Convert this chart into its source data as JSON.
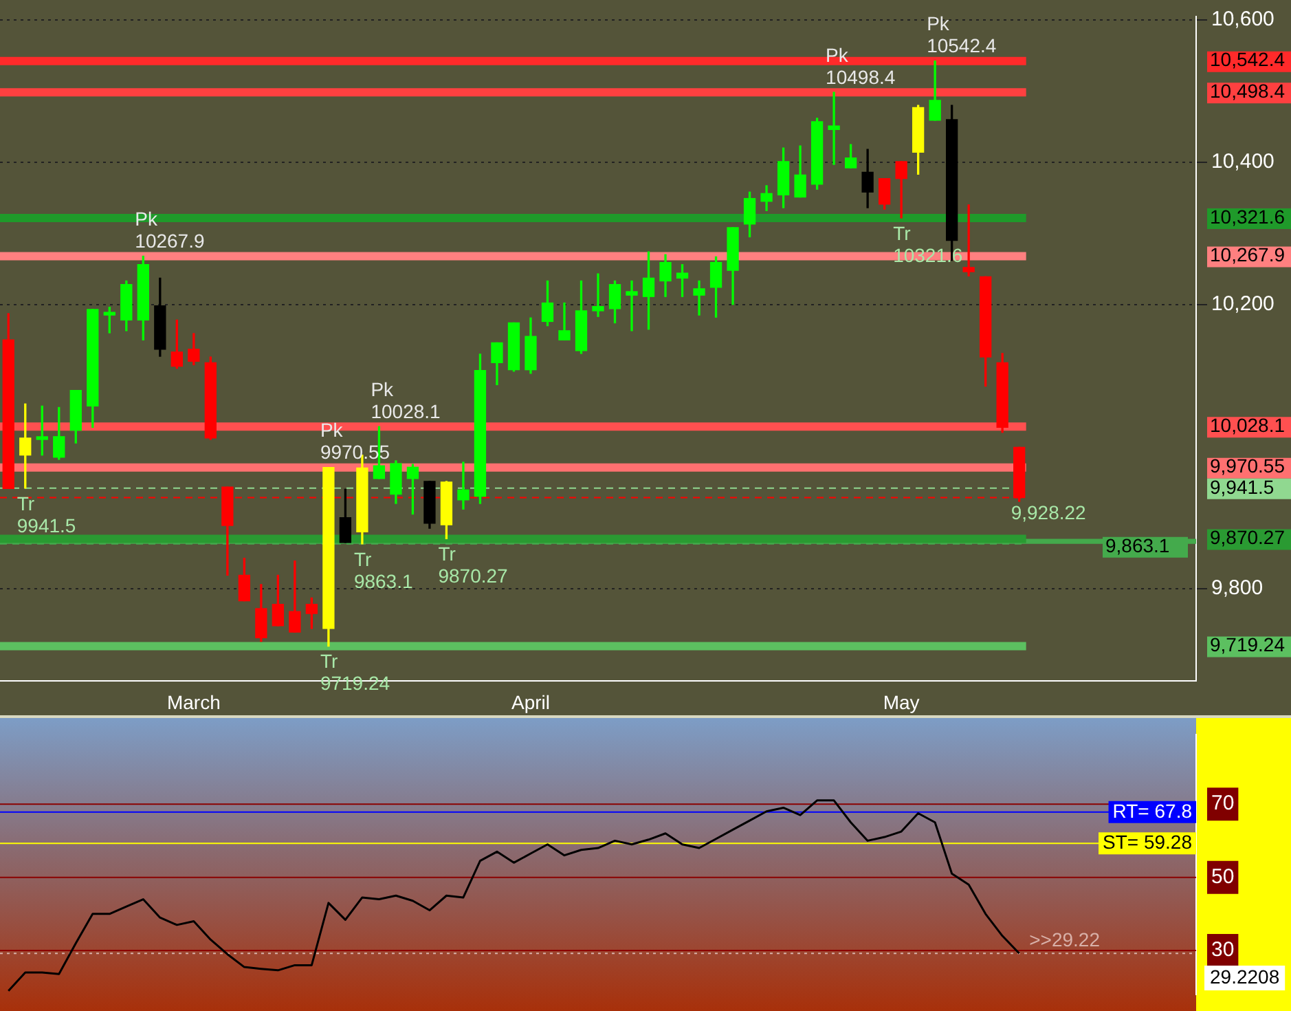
{
  "chart_data": [
    {
      "type": "candlestick",
      "categories": [
        null,
        null,
        null,
        null,
        null,
        null,
        null,
        null,
        null,
        null,
        null,
        "March",
        null,
        null,
        null,
        null,
        null,
        null,
        null,
        null,
        null,
        null,
        null,
        null,
        null,
        null,
        null,
        null,
        null,
        null,
        null,
        "April",
        null,
        null,
        null,
        null,
        null,
        null,
        null,
        null,
        null,
        null,
        null,
        null,
        null,
        null,
        null,
        null,
        null,
        null,
        null,
        null,
        null,
        "May",
        null,
        null,
        null,
        null,
        null,
        null,
        null,
        null,
        null,
        null,
        null,
        null,
        null,
        null,
        null,
        null,
        null
      ],
      "ohlc": [
        [
          10150,
          10187,
          9941,
          9941
        ],
        [
          9988,
          10060,
          9941.5,
          10012
        ],
        [
          10010,
          10057,
          9988,
          10012
        ],
        [
          9985,
          10055,
          9982,
          10014
        ],
        [
          10023,
          10079,
          10005,
          10079
        ],
        [
          10057,
          10193,
          10027,
          10193
        ],
        [
          10185,
          10196,
          10160,
          10188
        ],
        [
          10178,
          10233,
          10163,
          10228
        ],
        [
          10178,
          10267.9,
          10150,
          10256
        ],
        [
          10198,
          10237,
          10127,
          10137
        ],
        [
          10133,
          10178,
          10110,
          10113
        ],
        [
          10137,
          10159,
          10115,
          10120
        ],
        [
          10118,
          10126,
          10010,
          10012
        ],
        [
          9943,
          9943,
          9819,
          9889
        ],
        [
          9819,
          9843,
          9783,
          9783
        ],
        [
          9772,
          9806,
          9726,
          9731
        ],
        [
          9778,
          9819,
          9748,
          9748
        ],
        [
          9768,
          9839,
          9739,
          9739
        ],
        [
          9778,
          9787,
          9744,
          9765
        ],
        [
          9744,
          9970.55,
          9719.24,
          9970.55
        ],
        [
          9900,
          9940,
          9865,
          9865
        ],
        [
          9880,
          9988,
          9863.1,
          9970
        ],
        [
          9955,
          10028.1,
          9955,
          9973
        ],
        [
          9933,
          9980,
          9920,
          9976
        ],
        [
          9955,
          9975,
          9905,
          9971
        ],
        [
          9951,
          9951,
          9885,
          9892
        ],
        [
          9890,
          9951,
          9870.27,
          9950
        ],
        [
          9925,
          9978,
          9912,
          9939
        ],
        [
          9930,
          10130,
          9920,
          10107
        ],
        [
          10118,
          10146,
          10087,
          10146
        ],
        [
          10108,
          10174,
          10106,
          10174
        ],
        [
          10108,
          10181,
          10103,
          10155
        ],
        [
          10176,
          10233,
          10170,
          10202
        ],
        [
          10150,
          10202,
          10150,
          10163
        ],
        [
          10135,
          10233,
          10131,
          10191
        ],
        [
          10191,
          10243,
          10183,
          10197
        ],
        [
          10194,
          10233,
          10174,
          10228
        ],
        [
          10213,
          10233,
          10163,
          10218
        ],
        [
          10211,
          10274,
          10165,
          10237
        ],
        [
          10233,
          10270,
          10211,
          10259
        ],
        [
          10237,
          10256,
          10211,
          10244
        ],
        [
          10213,
          10233,
          10185,
          10222
        ],
        [
          10224,
          10267,
          10182,
          10259
        ],
        [
          10248,
          10308,
          10200,
          10308
        ],
        [
          10313,
          10358,
          10295,
          10349
        ],
        [
          10345,
          10367,
          10332,
          10356
        ],
        [
          10354,
          10420,
          10336,
          10401
        ],
        [
          10351,
          10423,
          10351,
          10382
        ],
        [
          10369,
          10462,
          10362,
          10457
        ],
        [
          10446,
          10498.4,
          10397,
          10451
        ],
        [
          10392,
          10425,
          10392,
          10406
        ],
        [
          10386,
          10418,
          10336,
          10358
        ],
        [
          10377,
          10377,
          10334,
          10341
        ],
        [
          10401,
          10401,
          10321.6,
          10377
        ],
        [
          10414,
          10480,
          10383,
          10477
        ],
        [
          10459,
          10542.4,
          10459,
          10487
        ],
        [
          10460,
          10480,
          10262,
          10290
        ],
        [
          10252,
          10340,
          10240,
          10246
        ],
        [
          10239,
          10239,
          10085,
          10126
        ],
        [
          10118,
          10131,
          10020,
          10027
        ],
        [
          9999,
          9999,
          9923,
          9928.22
        ],
        null,
        null,
        null,
        null,
        null,
        null,
        null,
        null,
        null,
        null
      ],
      "colors": [
        "#ff0000",
        "#ffff00",
        "#00ff00",
        "#00ff00",
        "#00ff00",
        "#00ff00",
        "#00ff00",
        "#00ff00",
        "#00ff00",
        "#000000",
        "#ff0000",
        "#ff0000",
        "#ff0000",
        "#ff0000",
        "#ff0000",
        "#ff0000",
        "#ff0000",
        "#ff0000",
        "#ff0000",
        "#ffff00",
        "#000000",
        "#ffff00",
        "#00ff00",
        "#00ff00",
        "#00ff00",
        "#000000",
        "#ffff00",
        "#00ff00",
        "#00ff00",
        "#00ff00",
        "#00ff00",
        "#00ff00",
        "#00ff00",
        "#00ff00",
        "#00ff00",
        "#00ff00",
        "#00ff00",
        "#00ff00",
        "#00ff00",
        "#00ff00",
        "#00ff00",
        "#00ff00",
        "#00ff00",
        "#00ff00",
        "#00ff00",
        "#00ff00",
        "#00ff00",
        "#00ff00",
        "#00ff00",
        "#00ff00",
        "#00ff00",
        "#000000",
        "#ff0000",
        "#ff0000",
        "#ffff00",
        "#00ff00",
        "#000000",
        "#ff0000",
        "#ff0000",
        "#ff0000",
        "#ff0000",
        null,
        null,
        null,
        null,
        null,
        null,
        null,
        null,
        null,
        null
      ],
      "ylim": [
        9670,
        10605
      ],
      "yticks": [
        {
          "value": 9800,
          "label": "9,800"
        },
        {
          "value": 10200,
          "label": "10,200"
        },
        {
          "value": 10400,
          "label": "10,400"
        },
        {
          "value": 10600,
          "label": "10,600"
        }
      ],
      "grid": "y",
      "legend": false,
      "y2lim": [
        9670,
        10605
      ],
      "y2ticks": [
        {
          "value": 10542.4,
          "label": "10,542.4"
        },
        {
          "value": 10498.4,
          "label": "10,498.4"
        },
        {
          "value": 10321.6,
          "label": "10,321.6"
        },
        {
          "value": 10267.9,
          "label": "10,267.9"
        },
        {
          "value": 10028.1,
          "label": "10,028.1"
        },
        {
          "value": 9970.55,
          "label": "9,970.55"
        },
        {
          "value": 9941.5,
          "label": "9,941.5"
        },
        {
          "value": 9870.27,
          "label": "9,870.27"
        },
        {
          "value": 9719.24,
          "label": "9,719.24"
        }
      ],
      "bands": [
        {
          "axis": "y",
          "from": 9863.1,
          "to": 9870.27,
          "label": "9,863.1",
          "color": "#44aa4c"
        }
      ],
      "ref_lines": [
        {
          "axis": "y",
          "value": 10542.4,
          "label": "Pk\n10542.4",
          "color": "#ff2a2a"
        },
        {
          "axis": "y",
          "value": 10498.4,
          "label": "Pk\n10498.4",
          "color": "#ff4040"
        },
        {
          "axis": "y",
          "value": 10321.6,
          "label": "Tr\n10321.6",
          "color": "#1f9a2a"
        },
        {
          "axis": "y",
          "value": 10267.9,
          "label": "Pk\n10267.9",
          "color": "#ff8080"
        },
        {
          "axis": "y",
          "value": 10028.1,
          "label": "Pk\n10028.1",
          "color": "#ff5050"
        },
        {
          "axis": "y",
          "value": 9970.55,
          "label": "Pk\n9970.55",
          "color": "#ff7070"
        },
        {
          "axis": "y",
          "value": 9941.5,
          "label": "Tr\n9941.5",
          "color": "#90d890",
          "line_style": "dashed"
        },
        {
          "axis": "y",
          "value": 9928.22,
          "label": "9,928.22",
          "color": "#ff0000",
          "line_style": "dashed"
        },
        {
          "axis": "y",
          "value": 9870.27,
          "label": "Tr\n9870.27",
          "color": "#2a9a32"
        },
        {
          "axis": "y",
          "value": 9863.1,
          "label": "Tr\n9863.1",
          "color": "#44aa4c",
          "line_style": "dashed"
        },
        {
          "axis": "y",
          "value": 9719.24,
          "label": "Tr\n9719.24",
          "color": "#5cc060"
        }
      ]
    },
    {
      "type": "line",
      "categories": [
        null,
        null,
        null,
        null,
        null,
        null,
        null,
        null,
        null,
        null,
        null,
        null,
        null,
        null,
        null,
        null,
        null,
        null,
        null,
        null,
        null,
        null,
        null,
        null,
        null,
        null,
        null,
        null,
        null,
        null,
        null,
        null,
        null,
        null,
        null,
        null,
        null,
        null,
        null,
        null,
        null,
        null,
        null,
        null,
        null,
        null,
        null,
        null,
        null,
        null,
        null,
        null,
        null,
        null,
        null,
        null,
        null,
        null,
        null,
        null,
        null,
        null,
        null,
        null,
        null,
        null,
        null,
        null,
        null,
        null,
        null
      ],
      "values": [
        19,
        24,
        24,
        23.6,
        32,
        40,
        40,
        42,
        44,
        39,
        37,
        38,
        33,
        29,
        25.5,
        25,
        24.6,
        26,
        26,
        43,
        38.4,
        44.5,
        44,
        45,
        43.6,
        41,
        45,
        44.5,
        54.5,
        57,
        54,
        56.5,
        59,
        56,
        57.5,
        58,
        60,
        59,
        60.3,
        62,
        59,
        58,
        60.5,
        63,
        65.5,
        68,
        69,
        67,
        71,
        71,
        65,
        60,
        61,
        62.5,
        67.5,
        65,
        51,
        48,
        40,
        34,
        29.22,
        null,
        null,
        null,
        null,
        null,
        null,
        null,
        null,
        null,
        null
      ],
      "color": "#000000",
      "ylim": [
        18,
        89
      ],
      "yticks": [
        30,
        50,
        70
      ],
      "tick_labels": "y",
      "legend": false,
      "ref_lines": [
        {
          "axis": "y",
          "value": 70,
          "color": "#8b0000"
        },
        {
          "axis": "y",
          "value": 50,
          "color": "#8b0000"
        },
        {
          "axis": "y",
          "value": 30,
          "color": "#8b0000"
        },
        {
          "axis": "y",
          "value": 67.8,
          "label": "RT= 67.8",
          "color": "#0000ff"
        },
        {
          "axis": "y",
          "value": 59.28,
          "label": "ST= 59.28",
          "color": "#ffff00"
        },
        {
          "axis": "y",
          "value": 29.22,
          "label": ">>29.22",
          "color": "#d8b0a8",
          "line_style": "dotted"
        }
      ],
      "annotations": [
        "29.2208"
      ]
    }
  ]
}
